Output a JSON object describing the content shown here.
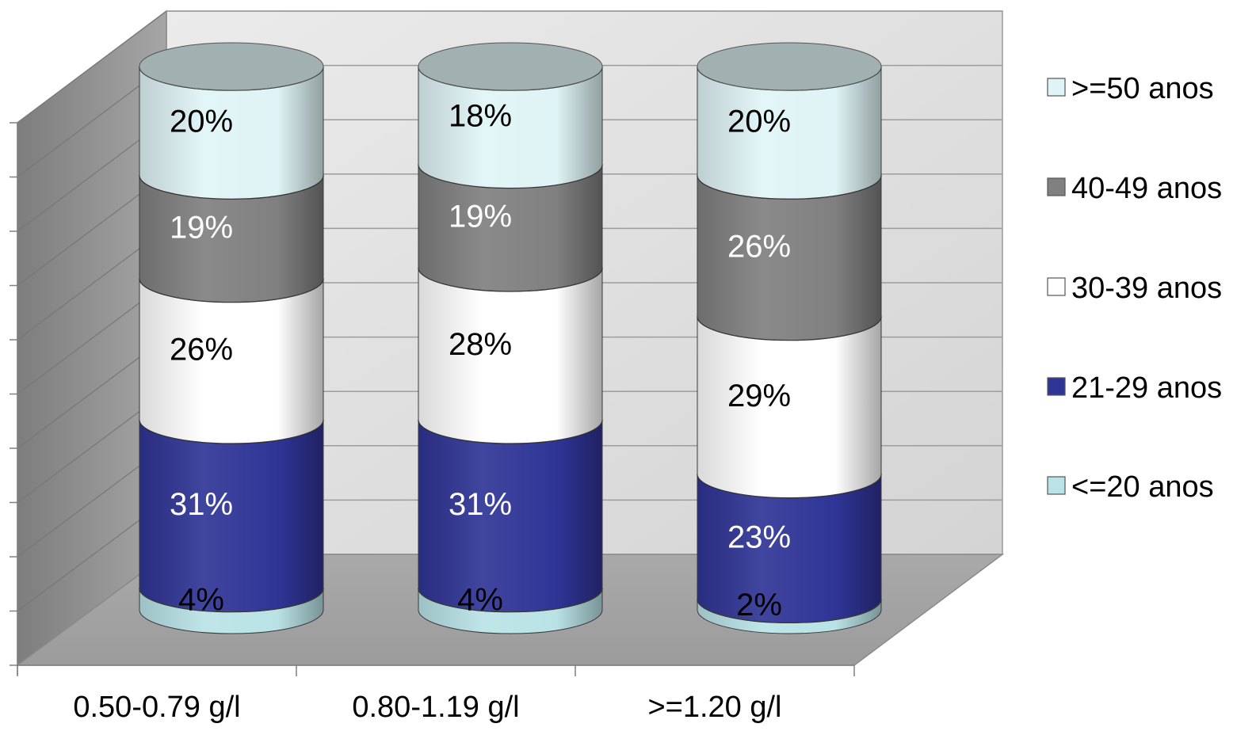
{
  "chart_data": {
    "type": "bar",
    "stacked": true,
    "percent_stacked": true,
    "three_d": true,
    "bar_shape": "cylinder",
    "categories": [
      "0.50-0.79 g/l",
      "0.80-1.19 g/l",
      ">=1.20 g/l"
    ],
    "series": [
      {
        "name": "<=20 anos",
        "values": [
          4,
          4,
          2
        ],
        "labels": [
          "4%",
          "4%",
          "2%"
        ]
      },
      {
        "name": "21-29 anos",
        "values": [
          31,
          31,
          23
        ],
        "labels": [
          "31%",
          "31%",
          "23%"
        ]
      },
      {
        "name": "30-39 anos",
        "values": [
          26,
          28,
          29
        ],
        "labels": [
          "26%",
          "28%",
          "29%"
        ]
      },
      {
        "name": "40-49 anos",
        "values": [
          19,
          19,
          26
        ],
        "labels": [
          "19%",
          "19%",
          "26%"
        ]
      },
      {
        "name": ">=50 anos",
        "values": [
          20,
          18,
          20
        ],
        "labels": [
          "20%",
          "18%",
          "20%"
        ]
      }
    ],
    "colors": {
      "<=20 anos": "#b9e3e6",
      "21-29 anos": "#2f3596",
      "30-39 anos": "#ffffff",
      "40-49 anos": "#808080",
      ">=50 anos": "#dff4f6"
    },
    "label_colors": [
      "#000000",
      "#ffffff",
      "#000000",
      "#ffffff",
      "#000000"
    ],
    "ylim": [
      0,
      100
    ],
    "grid": true,
    "legend_position": "right",
    "legend_order": [
      ">=50 anos",
      "40-49 anos",
      "30-39 anos",
      "21-29 anos",
      "<=20 anos"
    ],
    "title": "",
    "xlabel": "",
    "ylabel": ""
  }
}
